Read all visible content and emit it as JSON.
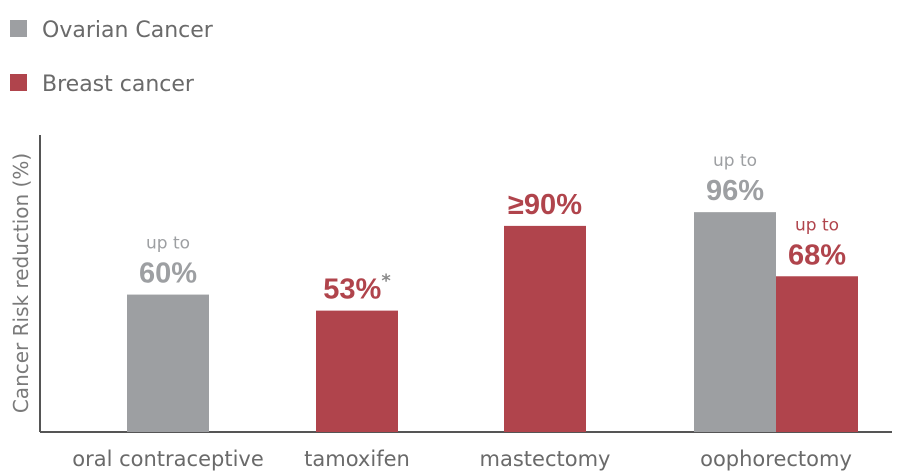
{
  "colors": {
    "ovarian": "#9d9fa2",
    "breast": "#b0444c",
    "axis": "#555555"
  },
  "chart_data": {
    "type": "bar",
    "ylabel": "Cancer Risk reduction (%)",
    "xlabel": "",
    "legend_placement": "top-left",
    "ylim": [
      0,
      131
    ],
    "categories": [
      "oral contraceptive",
      "tamoxifen",
      "mastectomy",
      "oophorectomy"
    ],
    "series": [
      {
        "name": "Ovarian Cancer",
        "color_key": "ovarian",
        "values": [
          60,
          null,
          null,
          96
        ]
      },
      {
        "name": "Breast cancer",
        "color_key": "breast",
        "values": [
          null,
          53,
          90,
          68
        ]
      }
    ],
    "labels": [
      {
        "category": 0,
        "series": 0,
        "prefix": "up to",
        "text": "60%",
        "suffix": ""
      },
      {
        "category": 1,
        "series": 1,
        "prefix": "",
        "text": "53%",
        "suffix": "*"
      },
      {
        "category": 2,
        "series": 1,
        "prefix": "",
        "text": "≥90%",
        "suffix": ""
      },
      {
        "category": 3,
        "series": 1,
        "prefix": "up to",
        "text": "68%",
        "suffix": ""
      },
      {
        "category": 3,
        "series": 0,
        "prefix": "up to",
        "text": "96%",
        "suffix": ""
      }
    ]
  }
}
